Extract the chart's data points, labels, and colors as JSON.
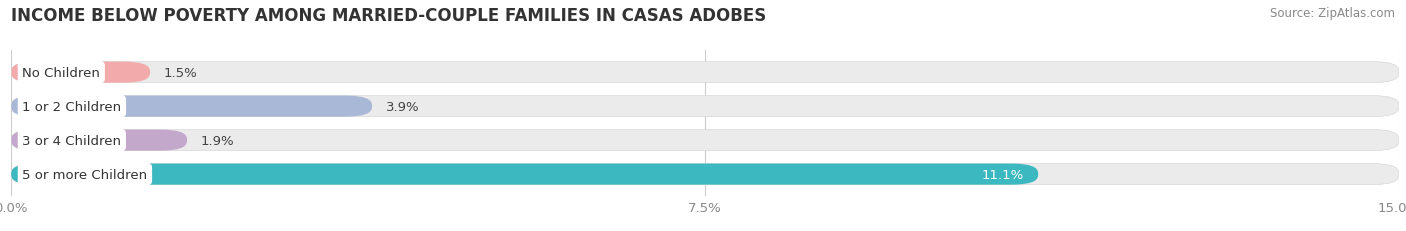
{
  "title": "INCOME BELOW POVERTY AMONG MARRIED-COUPLE FAMILIES IN CASAS ADOBES",
  "source": "Source: ZipAtlas.com",
  "categories": [
    "No Children",
    "1 or 2 Children",
    "3 or 4 Children",
    "5 or more Children"
  ],
  "values": [
    1.5,
    3.9,
    1.9,
    11.1
  ],
  "bar_colors": [
    "#f2aaaa",
    "#aab8d8",
    "#c4a8cc",
    "#3cb8c0"
  ],
  "xlim": [
    0,
    15.0
  ],
  "xticks": [
    0.0,
    7.5,
    15.0
  ],
  "xtick_labels": [
    "0.0%",
    "7.5%",
    "15.0%"
  ],
  "bar_height": 0.62,
  "background_color": "#ffffff",
  "bar_bg_color": "#ebebeb",
  "title_fontsize": 12,
  "label_fontsize": 9.5,
  "value_fontsize": 9.5,
  "tick_fontsize": 9.5
}
